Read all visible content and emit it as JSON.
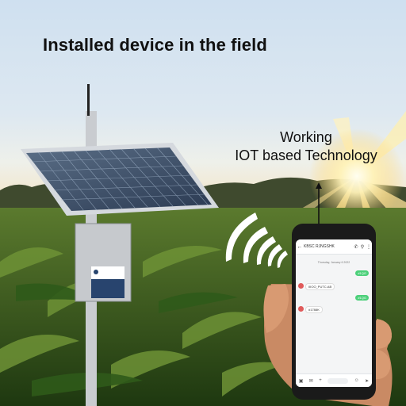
{
  "title": "Installed device in the field",
  "caption": {
    "line1": "Working",
    "line2": "IOT based Technology"
  },
  "phone": {
    "contact": "KBSC RJNGSHK",
    "date_divider": "Thursday, January 6 2022",
    "messages": [
      {
        "dir": "out",
        "text": "#1QG"
      },
      {
        "dir": "in",
        "text": "IIIOO_PUTC.AB"
      },
      {
        "dir": "out",
        "text": "#1QG"
      },
      {
        "dir": "in",
        "text": "#1788K"
      }
    ]
  },
  "icons": [
    "back-arrow-icon",
    "phone-icon",
    "search-icon",
    "more-icon",
    "add-icon",
    "gallery-icon",
    "emoji-icon",
    "attach-icon",
    "send-icon",
    "wifi-signal-icon"
  ]
}
